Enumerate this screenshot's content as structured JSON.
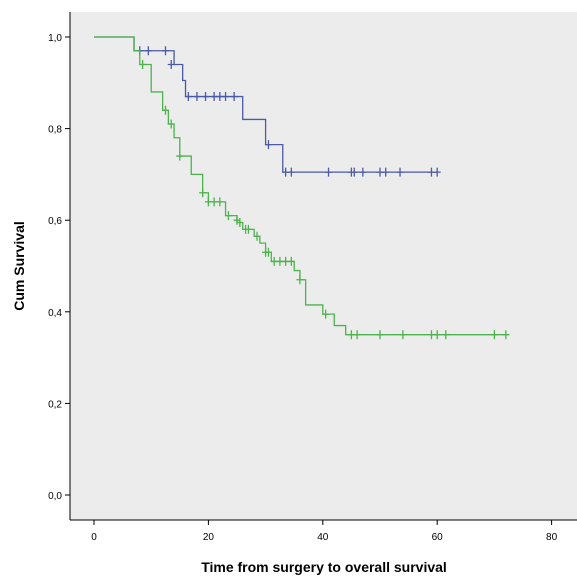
{
  "chart_data": {
    "type": "line",
    "subtype": "kaplan-meier step",
    "title": "",
    "xlabel": "Time from surgery to overall survival",
    "ylabel": "Cum Survival",
    "xlim": [
      0,
      80
    ],
    "ylim": [
      0,
      1
    ],
    "x_ticks": [
      {
        "value": 0,
        "label": "0"
      },
      {
        "value": 20,
        "label": "20"
      },
      {
        "value": 40,
        "label": "40"
      },
      {
        "value": 60,
        "label": "60"
      },
      {
        "value": 80,
        "label": "80"
      }
    ],
    "y_ticks": [
      {
        "value": 0,
        "label": "0,0"
      },
      {
        "value": 0.2,
        "label": "0,2"
      },
      {
        "value": 0.4,
        "label": "0,4"
      },
      {
        "value": 0.6,
        "label": "0,6"
      },
      {
        "value": 0.8,
        "label": "0,8"
      },
      {
        "value": 1.0,
        "label": "1,0"
      }
    ],
    "grid": false,
    "legend": "none",
    "background_color": "#ececec",
    "series": [
      {
        "color": "#4a5aa8",
        "steps": [
          [
            0,
            1.0
          ],
          [
            7,
            0.97
          ],
          [
            14,
            0.94
          ],
          [
            15.5,
            0.905
          ],
          [
            16,
            0.87
          ],
          [
            26,
            0.82
          ],
          [
            30,
            0.765
          ],
          [
            33,
            0.705
          ],
          [
            60,
            0.705
          ]
        ],
        "censored": [
          [
            8,
            0.97
          ],
          [
            9.5,
            0.97
          ],
          [
            12.5,
            0.97
          ],
          [
            13.5,
            0.94
          ],
          [
            16.5,
            0.87
          ],
          [
            18,
            0.87
          ],
          [
            19.5,
            0.87
          ],
          [
            21,
            0.87
          ],
          [
            22,
            0.87
          ],
          [
            23,
            0.87
          ],
          [
            24.5,
            0.87
          ],
          [
            30.5,
            0.765
          ],
          [
            33.5,
            0.705
          ],
          [
            34.5,
            0.705
          ],
          [
            41,
            0.705
          ],
          [
            45,
            0.705
          ],
          [
            45.5,
            0.705
          ],
          [
            47,
            0.705
          ],
          [
            50,
            0.705
          ],
          [
            51,
            0.705
          ],
          [
            53.5,
            0.705
          ],
          [
            59,
            0.705
          ],
          [
            60,
            0.705
          ]
        ]
      },
      {
        "color": "#4db34d",
        "steps": [
          [
            0,
            1.0
          ],
          [
            7,
            0.97
          ],
          [
            8,
            0.94
          ],
          [
            10,
            0.88
          ],
          [
            12,
            0.84
          ],
          [
            13,
            0.81
          ],
          [
            14,
            0.78
          ],
          [
            15,
            0.74
          ],
          [
            17,
            0.7
          ],
          [
            19,
            0.66
          ],
          [
            20,
            0.64
          ],
          [
            23,
            0.61
          ],
          [
            25,
            0.595
          ],
          [
            26,
            0.58
          ],
          [
            28,
            0.565
          ],
          [
            29,
            0.55
          ],
          [
            30,
            0.53
          ],
          [
            31,
            0.51
          ],
          [
            35,
            0.49
          ],
          [
            36,
            0.47
          ],
          [
            37,
            0.415
          ],
          [
            40,
            0.395
          ],
          [
            42,
            0.37
          ],
          [
            44,
            0.35
          ],
          [
            72,
            0.35
          ]
        ],
        "censored": [
          [
            8.5,
            0.94
          ],
          [
            12.5,
            0.84
          ],
          [
            13.5,
            0.81
          ],
          [
            15,
            0.74
          ],
          [
            19,
            0.66
          ],
          [
            20,
            0.64
          ],
          [
            21,
            0.64
          ],
          [
            22,
            0.64
          ],
          [
            23.5,
            0.61
          ],
          [
            25,
            0.6
          ],
          [
            25.5,
            0.595
          ],
          [
            26.5,
            0.58
          ],
          [
            27,
            0.58
          ],
          [
            28.5,
            0.565
          ],
          [
            30,
            0.53
          ],
          [
            30.5,
            0.53
          ],
          [
            31.5,
            0.51
          ],
          [
            32.5,
            0.51
          ],
          [
            33.5,
            0.51
          ],
          [
            34.5,
            0.51
          ],
          [
            36,
            0.47
          ],
          [
            40.5,
            0.395
          ],
          [
            45,
            0.35
          ],
          [
            46,
            0.35
          ],
          [
            50,
            0.35
          ],
          [
            54,
            0.35
          ],
          [
            59,
            0.35
          ],
          [
            60,
            0.35
          ],
          [
            61.5,
            0.35
          ],
          [
            70,
            0.35
          ],
          [
            72,
            0.35
          ]
        ]
      }
    ]
  }
}
